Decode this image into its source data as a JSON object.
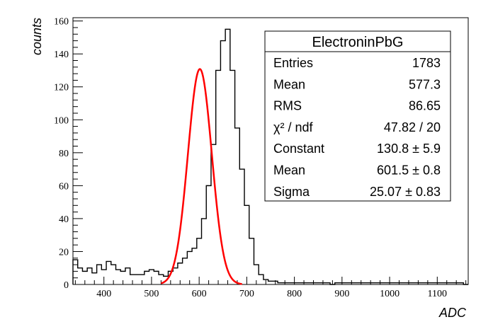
{
  "chart_data": {
    "type": "bar",
    "xlabel": "ADC",
    "ylabel": "counts",
    "xlim": [
      335,
      1165
    ],
    "ylim": [
      0,
      162
    ],
    "xticks": [
      400,
      500,
      600,
      700,
      800,
      900,
      1000,
      1100
    ],
    "yticks": [
      0,
      20,
      40,
      60,
      80,
      100,
      120,
      140,
      160
    ],
    "grid": false,
    "legend": "top-right",
    "histogram": {
      "bin_width": 10,
      "edges_start": 335,
      "counts": [
        15,
        10,
        8,
        10,
        7,
        12,
        9,
        14,
        12,
        9,
        8,
        10,
        6,
        6,
        6,
        8,
        9,
        8,
        6,
        5,
        8,
        10,
        13,
        16,
        20,
        22,
        28,
        40,
        60,
        85,
        130,
        148,
        155,
        130,
        95,
        70,
        48,
        28,
        12,
        6,
        3,
        2,
        2,
        1,
        1,
        1,
        1,
        1,
        1,
        1,
        1,
        1,
        1,
        1,
        0,
        1,
        1,
        1,
        1,
        1,
        1,
        1,
        1,
        1,
        1,
        1,
        1,
        1,
        1,
        1,
        1,
        1,
        1,
        1,
        1,
        1,
        1,
        1,
        1,
        1,
        1,
        1,
        0
      ]
    },
    "fit": {
      "name": "Gaussian",
      "constant": 130.8,
      "mean": 601.5,
      "sigma": 25.07,
      "range": [
        520,
        690
      ],
      "color": "#ff0000"
    },
    "stats_box": {
      "title": "ElectroninPbG",
      "rows": [
        {
          "label": "Entries",
          "value": "1783"
        },
        {
          "label": "Mean",
          "value": "577.3"
        },
        {
          "label": "RMS",
          "value": "86.65"
        },
        {
          "label": "χ² / ndf",
          "value": "47.82 / 20"
        },
        {
          "label": "Constant",
          "value": "130.8 ± 5.9"
        },
        {
          "label": "Mean",
          "value": "601.5 ± 0.8"
        },
        {
          "label": "Sigma",
          "value": "25.07 ± 0.83"
        }
      ]
    }
  }
}
